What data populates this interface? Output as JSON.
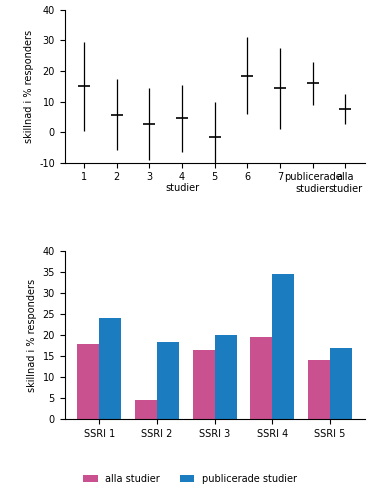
{
  "chart_data": [
    {
      "type": "errorbar",
      "ylabel": "skillnad i % responders",
      "xlabel": "studier",
      "categories": [
        "1",
        "2",
        "3",
        "4",
        "5",
        "6",
        "7",
        "publicerade studier",
        "alla studier"
      ],
      "values": [
        15,
        5.5,
        2.5,
        4.5,
        -1.5,
        18.5,
        14.5,
        16,
        7.5
      ],
      "low": [
        0.5,
        -6,
        -9,
        -6.5,
        -10,
        6,
        1,
        9,
        2.5
      ],
      "high": [
        29.5,
        17.5,
        14.5,
        15.5,
        10,
        31,
        27.5,
        23,
        12.5
      ],
      "color": "#000000",
      "ylim": [
        -10,
        40
      ],
      "yticks": [
        -10,
        0,
        10,
        20,
        30,
        40
      ],
      "grid": false
    },
    {
      "type": "bar",
      "ylabel": "skillnad i % responders",
      "categories": [
        "SSRI 1",
        "SSRI 2",
        "SSRI 3",
        "SSRI 4",
        "SSRI 5"
      ],
      "series": [
        {
          "name": "alla studier",
          "color": "#c9518f",
          "values": [
            18,
            4.5,
            16.5,
            19.5,
            14
          ]
        },
        {
          "name": "publicerade studier",
          "color": "#1b7dc0",
          "values": [
            24,
            18.5,
            20,
            34.5,
            17
          ]
        }
      ],
      "ylim": [
        0,
        40
      ],
      "yticks": [
        0,
        5,
        10,
        15,
        20,
        25,
        30,
        35,
        40
      ],
      "legend": "lower center",
      "grid": false
    }
  ]
}
